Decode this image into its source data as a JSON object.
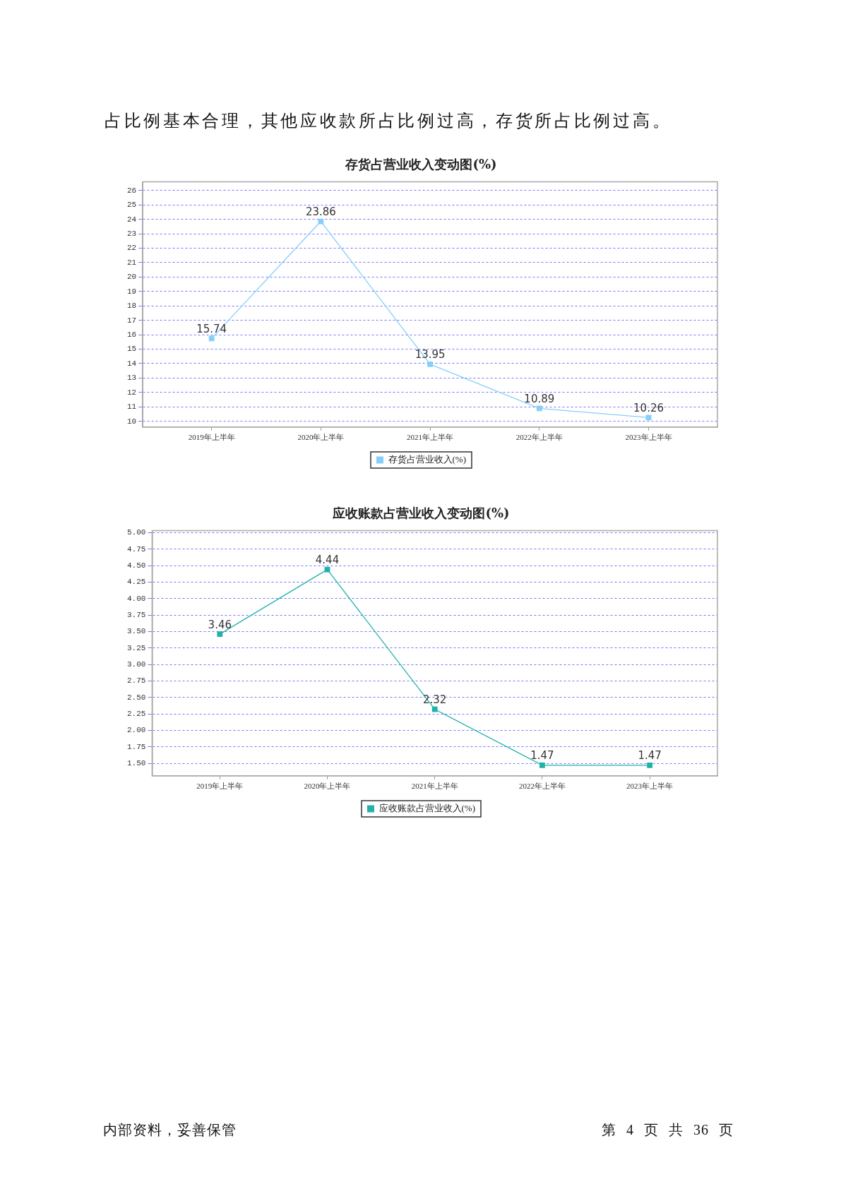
{
  "chart_data": [
    {
      "type": "line",
      "title": "存货占营业收入变动图(%)",
      "categories": [
        "2019年上半年",
        "2020年上半年",
        "2021年上半年",
        "2022年上半年",
        "2023年上半年"
      ],
      "series": [
        {
          "name": "存货占营业收入(%)",
          "color": "#87cefa",
          "values": [
            15.74,
            23.86,
            13.95,
            10.89,
            10.26
          ]
        }
      ],
      "ylim": [
        9.6,
        26.6
      ],
      "yticks": [
        10,
        11,
        12,
        13,
        14,
        15,
        16,
        17,
        18,
        19,
        20,
        21,
        22,
        23,
        24,
        25,
        26
      ],
      "grid": "y",
      "legend": "bottom",
      "marker": "square",
      "line_style": "solid",
      "data_labels": true,
      "annotations": [
        "占比例基本合理，其他应收款所占比例过高，存货所占比例过高。"
      ]
    },
    {
      "type": "line",
      "title": "应收账款占营业收入变动图(%)",
      "categories": [
        "2019年上半年",
        "2020年上半年",
        "2021年上半年",
        "2022年上半年",
        "2023年上半年"
      ],
      "series": [
        {
          "name": "应收账款占营业收入(%)",
          "color": "#20b2aa",
          "values": [
            3.46,
            4.44,
            2.32,
            1.47,
            1.47
          ]
        }
      ],
      "ylim": [
        1.31,
        5.03
      ],
      "yticks": [
        {
          "value": 1.5,
          "label": "1.50"
        },
        {
          "value": 1.75,
          "label": "1.75"
        },
        {
          "value": 2,
          "label": "2.00"
        },
        {
          "value": 2.25,
          "label": "2.25"
        },
        {
          "value": 2.5,
          "label": "2.50"
        },
        {
          "value": 2.75,
          "label": "2.75"
        },
        {
          "value": 3,
          "label": "3.00"
        },
        {
          "value": 3.25,
          "label": "3.25"
        },
        {
          "value": 3.5,
          "label": "3.50"
        },
        {
          "value": 3.75,
          "label": "3.75"
        },
        {
          "value": 4,
          "label": "4.00"
        },
        {
          "value": 4.25,
          "label": "4.25"
        },
        {
          "value": 4.5,
          "label": "4.50"
        },
        {
          "value": 4.75,
          "label": "4.75"
        },
        {
          "value": 5,
          "label": "5.00"
        }
      ],
      "grid": "y",
      "legend": "bottom",
      "marker": "square",
      "line_style": "solid",
      "data_labels": true,
      "annotations": [
        "内部资料，妥善保管",
        "第 4 页 共 36 页"
      ]
    }
  ]
}
